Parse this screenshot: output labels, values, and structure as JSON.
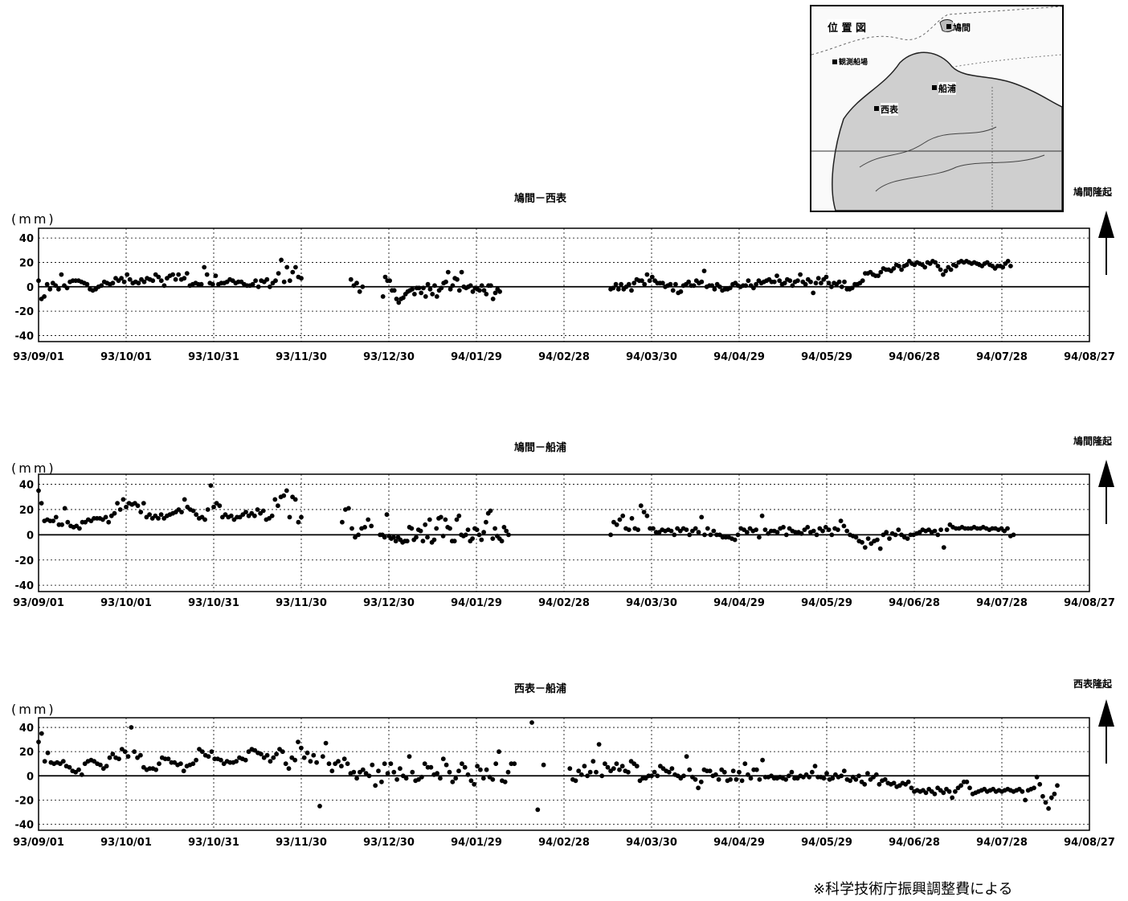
{
  "inset_map": {
    "title": "位 置 図",
    "stations": [
      "鳩間",
      "観測船場",
      "船浦",
      "西表"
    ]
  },
  "footnote": "※科学技術庁振興調整費による",
  "chart_data": [
    {
      "type": "scatter",
      "title": "鳩間－西表",
      "ylabel": "(mm)",
      "uplift_label": "鳩間隆起",
      "ylim": [
        -45,
        48
      ],
      "yticks": [
        40,
        20,
        0,
        -20,
        -40
      ],
      "xlim": [
        "93/09/01",
        "94/08/27"
      ],
      "xticks": [
        "93/09/01",
        "93/10/01",
        "93/10/31",
        "93/11/30",
        "93/12/30",
        "94/01/29",
        "94/02/28",
        "94/03/30",
        "94/04/29",
        "94/05/29",
        "94/06/28",
        "94/07/28",
        "94/08/27"
      ],
      "grid": true,
      "segments": [
        {
          "start": "93/09/01",
          "end": "93/11/30",
          "pts": [
            5,
            -10,
            -8,
            2,
            -2,
            3,
            1,
            -2,
            10,
            1,
            -1,
            4,
            5,
            5,
            5,
            4,
            3,
            2,
            -2,
            -3,
            -2,
            0,
            1,
            4,
            3,
            2,
            3,
            7,
            5,
            7,
            4,
            10,
            6,
            3,
            4,
            3,
            6,
            4,
            7,
            6,
            5,
            10,
            8,
            5,
            1,
            7,
            9,
            10,
            6,
            10,
            6,
            7,
            11,
            1,
            2,
            3,
            2,
            2,
            16,
            10,
            3,
            2,
            9,
            2,
            3,
            3,
            4,
            6,
            5,
            3,
            4,
            4,
            2,
            1,
            1,
            2,
            5,
            0,
            5,
            4,
            6,
            0,
            3,
            5,
            11,
            22,
            4,
            16,
            5,
            12,
            16,
            8,
            7
          ]
        },
        {
          "start": "93/12/17",
          "end": "93/12/21",
          "pts": [
            6,
            1,
            3,
            -4,
            0
          ]
        },
        {
          "start": "93/12/28",
          "end": "94/02/06",
          "pts": [
            -8,
            8,
            5,
            5,
            -3,
            -3,
            -10,
            -13,
            -10,
            -9,
            -6,
            -4,
            -3,
            -2,
            -6,
            -1,
            -1,
            -5,
            -1,
            -8,
            2,
            -2,
            -6,
            1,
            -8,
            -3,
            -1,
            3,
            4,
            12,
            -2,
            1,
            7,
            6,
            -3,
            12,
            0,
            -1,
            0,
            1,
            -4,
            -1,
            -2,
            -3,
            1,
            -3,
            -6,
            1,
            1,
            -10,
            -5,
            -2,
            -4
          ]
        },
        {
          "start": "94/03/16",
          "end": "94/07/31",
          "pts": [
            -2,
            -1,
            2,
            -2,
            2,
            -2,
            0,
            2,
            -3,
            3,
            6,
            5,
            5,
            2,
            10,
            5,
            8,
            5,
            3,
            3,
            3,
            0,
            1,
            2,
            -3,
            2,
            -5,
            -4,
            1,
            2,
            4,
            1,
            1,
            5,
            3,
            4,
            13,
            0,
            1,
            1,
            -2,
            2,
            0,
            -3,
            -2,
            -2,
            -1,
            2,
            3,
            1,
            0,
            1,
            1,
            5,
            1,
            -1,
            2,
            5,
            3,
            4,
            5,
            6,
            4,
            4,
            9,
            5,
            2,
            3,
            6,
            5,
            1,
            4,
            5,
            10,
            4,
            2,
            6,
            4,
            -5,
            3,
            7,
            3,
            6,
            8,
            3,
            0,
            3,
            2,
            4,
            0,
            4,
            -2,
            -2,
            -1,
            2,
            2,
            3,
            5,
            11,
            11,
            12,
            10,
            9,
            9,
            12,
            15,
            14,
            14,
            13,
            15,
            18,
            17,
            14,
            17,
            18,
            21,
            19,
            18,
            20,
            19,
            18,
            16,
            20,
            19,
            21,
            20,
            17,
            14,
            10,
            13,
            16,
            14,
            18,
            17,
            20,
            21,
            20,
            21,
            20,
            19,
            20,
            19,
            18,
            17,
            19,
            20,
            18,
            17,
            15,
            17,
            17,
            16,
            19,
            21,
            17
          ]
        }
      ]
    },
    {
      "type": "scatter",
      "title": "鳩間－船浦",
      "ylabel": "(mm)",
      "uplift_label": "鳩間隆起",
      "ylim": [
        -45,
        48
      ],
      "yticks": [
        40,
        20,
        0,
        -20,
        -40
      ],
      "xlim": [
        "93/09/01",
        "94/08/27"
      ],
      "xticks": [
        "93/09/01",
        "93/10/01",
        "93/10/31",
        "93/11/30",
        "93/12/30",
        "94/01/29",
        "94/02/28",
        "94/03/30",
        "94/04/29",
        "94/05/29",
        "94/06/28",
        "94/07/28",
        "94/08/27"
      ],
      "grid": true,
      "segments": [
        {
          "start": "93/09/01",
          "end": "93/11/30",
          "pts": [
            35,
            25,
            11,
            12,
            11,
            11,
            14,
            8,
            8,
            21,
            10,
            7,
            6,
            7,
            5,
            10,
            10,
            12,
            11,
            13,
            13,
            13,
            12,
            14,
            10,
            15,
            17,
            25,
            20,
            28,
            22,
            25,
            24,
            25,
            23,
            18,
            25,
            14,
            16,
            13,
            15,
            13,
            16,
            13,
            15,
            16,
            17,
            18,
            20,
            18,
            28,
            22,
            20,
            19,
            16,
            13,
            14,
            12,
            20,
            39,
            22,
            25,
            23,
            14,
            16,
            14,
            15,
            12,
            14,
            14,
            16,
            18,
            15,
            17,
            15,
            20,
            17,
            19,
            12,
            13,
            15,
            28,
            23,
            30,
            31,
            35,
            14,
            30,
            28,
            10,
            14
          ]
        },
        {
          "start": "93/12/14",
          "end": "93/12/24",
          "pts": [
            10,
            20,
            21,
            5,
            -2,
            0,
            5,
            6,
            12,
            7
          ]
        },
        {
          "start": "93/12/27",
          "end": "94/02/09",
          "pts": [
            0,
            0,
            -2,
            16,
            -1,
            -3,
            -2,
            -5,
            -2,
            -4,
            -6,
            -5,
            -5,
            6,
            5,
            -4,
            -2,
            4,
            3,
            -5,
            8,
            -2,
            12,
            -6,
            -4,
            5,
            13,
            14,
            -1,
            12,
            6,
            5,
            -5,
            -5,
            12,
            15,
            0,
            -1,
            0,
            4,
            -5,
            -3,
            5,
            4,
            0,
            -4,
            2,
            10,
            17,
            19,
            -3,
            5,
            -1,
            -3,
            -5,
            6,
            3,
            0
          ]
        },
        {
          "start": "94/03/16",
          "end": "94/08/01",
          "pts": [
            0,
            10,
            8,
            12,
            15,
            5,
            4,
            13,
            5,
            4,
            23,
            18,
            15,
            5,
            5,
            2,
            2,
            4,
            3,
            4,
            3,
            0,
            5,
            3,
            5,
            4,
            0,
            3,
            5,
            2,
            14,
            0,
            5,
            0,
            3,
            0,
            0,
            -2,
            -2,
            -2,
            -3,
            -4,
            0,
            5,
            4,
            2,
            5,
            3,
            4,
            -2,
            15,
            4,
            1,
            3,
            3,
            2,
            5,
            6,
            0,
            5,
            3,
            2,
            2,
            1,
            4,
            6,
            2,
            3,
            0,
            5,
            3,
            6,
            4,
            0,
            5,
            4,
            11,
            7,
            3,
            0,
            -1,
            -2,
            -5,
            -6,
            -10,
            -3,
            -7,
            -5,
            -4,
            -11,
            0,
            2,
            -3,
            1,
            0,
            4,
            0,
            -2,
            -3,
            0,
            0,
            1,
            2,
            4,
            3,
            4,
            2,
            3,
            0,
            4,
            -10,
            4,
            8,
            6,
            5,
            5,
            6,
            5,
            5,
            5,
            6,
            5,
            5,
            6,
            5,
            4,
            5,
            5,
            4,
            5,
            3,
            5,
            -1,
            0
          ]
        }
      ]
    },
    {
      "type": "scatter",
      "title": "西表－船浦",
      "ylabel": "(mm)",
      "uplift_label": "西表隆起",
      "ylim": [
        -45,
        48
      ],
      "yticks": [
        40,
        20,
        0,
        -20,
        -40
      ],
      "xlim": [
        "93/09/01",
        "94/08/27"
      ],
      "xticks": [
        "93/09/01",
        "93/10/01",
        "93/10/31",
        "93/11/30",
        "93/12/30",
        "94/01/29",
        "94/02/28",
        "94/03/30",
        "94/04/29",
        "94/05/29",
        "94/06/28",
        "94/07/28",
        "94/08/27"
      ],
      "grid": true,
      "segments": [
        {
          "start": "93/09/01",
          "end": "94/02/11",
          "pts": [
            28,
            35,
            12,
            19,
            11,
            10,
            11,
            10,
            12,
            8,
            7,
            4,
            3,
            5,
            1,
            10,
            12,
            13,
            12,
            10,
            9,
            6,
            8,
            15,
            18,
            15,
            14,
            22,
            20,
            16,
            40,
            20,
            15,
            17,
            7,
            5,
            6,
            6,
            5,
            10,
            15,
            14,
            14,
            11,
            11,
            9,
            10,
            4,
            8,
            9,
            10,
            13,
            22,
            20,
            17,
            16,
            20,
            14,
            14,
            13,
            10,
            12,
            11,
            11,
            12,
            15,
            14,
            13,
            20,
            22,
            21,
            19,
            18,
            15,
            17,
            12,
            15,
            18,
            22,
            20,
            10,
            6,
            15,
            13,
            28,
            23,
            15,
            19,
            12,
            17,
            11,
            -25,
            16,
            27,
            10,
            4,
            10,
            12,
            8,
            14,
            10,
            2,
            3,
            -2,
            3,
            5,
            2,
            0,
            9,
            -8,
            4,
            -5,
            10,
            2,
            10,
            3,
            -3,
            6,
            0,
            -2,
            16,
            3,
            -4,
            -3,
            -1,
            10,
            7,
            7,
            1,
            2,
            -2,
            14,
            9,
            3,
            -5,
            -2,
            4,
            10,
            7,
            1,
            -4,
            -7,
            8,
            5,
            -2,
            5,
            -1,
            -3,
            10,
            20,
            -4,
            -5,
            3,
            10,
            10
          ]
        },
        {
          "start": "94/02/17",
          "end": "94/02/21",
          "pts": [
            44,
            -28,
            9
          ]
        },
        {
          "start": "94/03/02",
          "end": "94/08/16",
          "pts": [
            6,
            -3,
            -4,
            4,
            1,
            8,
            0,
            3,
            12,
            3,
            26,
            0,
            10,
            7,
            4,
            6,
            10,
            5,
            8,
            4,
            3,
            12,
            10,
            8,
            -4,
            -2,
            -2,
            0,
            0,
            3,
            0,
            8,
            6,
            4,
            3,
            6,
            1,
            0,
            -2,
            0,
            16,
            5,
            -1,
            -3,
            -10,
            -5,
            5,
            4,
            4,
            0,
            1,
            -3,
            5,
            3,
            -4,
            -3,
            4,
            -3,
            3,
            -4,
            10,
            1,
            -2,
            5,
            5,
            -3,
            13,
            -1,
            -1,
            0,
            -2,
            -2,
            -1,
            -2,
            -3,
            0,
            3,
            -2,
            -2,
            0,
            -1,
            1,
            -1,
            3,
            8,
            -1,
            -1,
            -2,
            2,
            -3,
            -2,
            1,
            -1,
            0,
            4,
            -3,
            -4,
            -1,
            -3,
            0,
            -5,
            -7,
            2,
            -3,
            -1,
            1,
            -7,
            -4,
            -3,
            -6,
            -7,
            -6,
            -9,
            -8,
            -6,
            -7,
            -5,
            -10,
            -13,
            -12,
            -13,
            -12,
            -14,
            -11,
            -13,
            -15,
            -10,
            -12,
            -14,
            -11,
            -13,
            -18,
            -13,
            -10,
            -8,
            -5,
            -5,
            -10,
            -15,
            -14,
            -13,
            -12,
            -11,
            -13,
            -12,
            -11,
            -13,
            -12,
            -13,
            -12,
            -11,
            -12,
            -13,
            -12,
            -11,
            -13,
            -20,
            -12,
            -11,
            -10,
            -1,
            -7,
            -17,
            -22,
            -27,
            -18,
            -15,
            -8
          ]
        }
      ]
    }
  ]
}
